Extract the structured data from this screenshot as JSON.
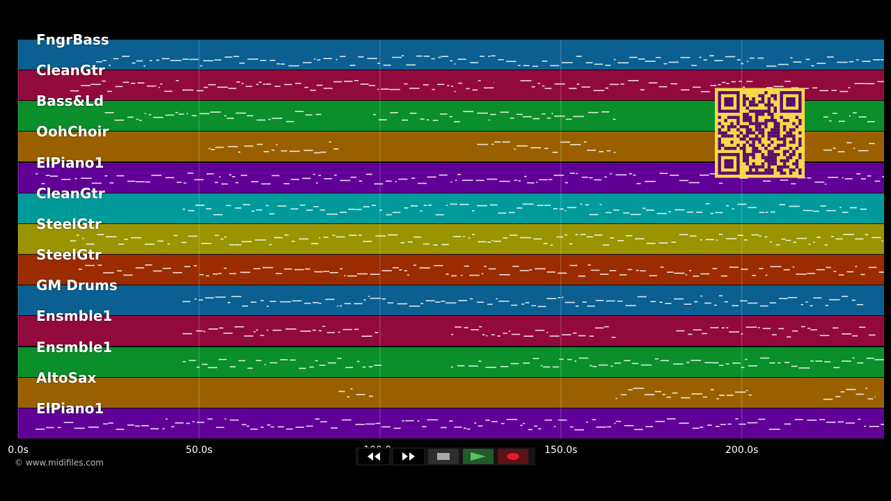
{
  "tracks": [
    {
      "label": "FngrBass",
      "color": "#0b5f91"
    },
    {
      "label": "CleanGtr",
      "color": "#920a3c"
    },
    {
      "label": "Bass&Ld",
      "color": "#0a8f2a"
    },
    {
      "label": "OohChoir",
      "color": "#9a6000"
    },
    {
      "label": "ElPiano1",
      "color": "#600096"
    },
    {
      "label": "CleanGtr",
      "color": "#009a9a"
    },
    {
      "label": "SteelGtr",
      "color": "#9a9400"
    },
    {
      "label": "SteelGtr",
      "color": "#9a2c00"
    },
    {
      "label": "GM Drums",
      "color": "#0b5f91"
    },
    {
      "label": "Ensmble1",
      "color": "#920a3c"
    },
    {
      "label": "Ensmble1",
      "color": "#0a8f2a"
    },
    {
      "label": "AltoSax",
      "color": "#9a6000"
    },
    {
      "label": "ElPiano1",
      "color": "#600096"
    }
  ],
  "timeline": {
    "ticks": [
      "0.0s",
      "50.0s",
      "100.0s",
      "150.0s",
      "200.0s"
    ],
    "tick_seconds": [
      0,
      50,
      100,
      150,
      200
    ],
    "max_seconds": 239.3
  },
  "copyright": "© www.midifiles.com",
  "transport": {
    "rewind_icon": "rewind-icon",
    "fastforward_icon": "fast-forward-icon",
    "stop_icon": "stop-icon",
    "play_icon": "play-icon",
    "record_icon": "record-icon"
  },
  "qr_code": {
    "color": "#f7d94a",
    "dark": "#5a0b6e"
  }
}
